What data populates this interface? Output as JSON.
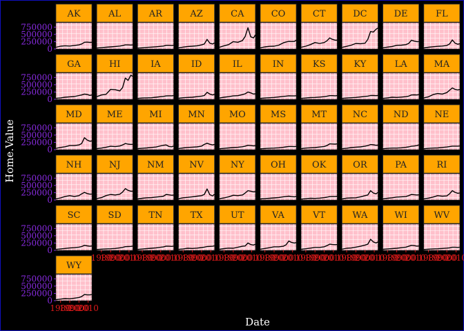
{
  "chart_data": {
    "type": "line",
    "layout": "faceted small multiples, 10 columns",
    "xlabel": "Date",
    "ylabel": "Home.Value",
    "x_range": [
      1975,
      2014
    ],
    "ylim": [
      0,
      900000
    ],
    "y_ticks": [
      0,
      250000,
      500000,
      750000
    ],
    "y_tick_labels": [
      "0",
      "250000",
      "500000",
      "750000"
    ],
    "x_ticks": [
      1980,
      1990,
      2000,
      2010
    ],
    "x_tick_labels": [
      "1980",
      "1990",
      "2000",
      "2010"
    ],
    "grid": true,
    "panel_background": "#ffc0cb",
    "strip_background": "#ffa500",
    "line_color": "#000000",
    "x": [
      1975,
      1980,
      1985,
      1990,
      1995,
      2000,
      2003,
      2006,
      2009,
      2012,
      2014
    ],
    "series": [
      {
        "name": "AK",
        "values": [
          60000,
          95000,
          110000,
          100000,
          120000,
          140000,
          170000,
          230000,
          235000,
          225000,
          230000
        ]
      },
      {
        "name": "AL",
        "values": [
          30000,
          45000,
          60000,
          70000,
          85000,
          100000,
          115000,
          140000,
          140000,
          135000,
          140000
        ]
      },
      {
        "name": "AR",
        "values": [
          28000,
          40000,
          55000,
          65000,
          75000,
          90000,
          100000,
          125000,
          125000,
          120000,
          125000
        ]
      },
      {
        "name": "AZ",
        "values": [
          40000,
          65000,
          85000,
          95000,
          110000,
          140000,
          170000,
          330000,
          200000,
          170000,
          210000
        ]
      },
      {
        "name": "CA",
        "values": [
          60000,
          110000,
          150000,
          250000,
          230000,
          290000,
          430000,
          730000,
          420000,
          380000,
          480000
        ]
      },
      {
        "name": "CO",
        "values": [
          40000,
          70000,
          90000,
          95000,
          130000,
          210000,
          240000,
          260000,
          255000,
          260000,
          300000
        ]
      },
      {
        "name": "CT",
        "values": [
          60000,
          95000,
          150000,
          220000,
          190000,
          220000,
          280000,
          380000,
          330000,
          300000,
          300000
        ]
      },
      {
        "name": "DC",
        "values": [
          55000,
          90000,
          130000,
          190000,
          180000,
          200000,
          330000,
          600000,
          580000,
          680000,
          720000
        ]
      },
      {
        "name": "DE",
        "values": [
          40000,
          65000,
          85000,
          125000,
          130000,
          150000,
          190000,
          300000,
          270000,
          250000,
          250000
        ]
      },
      {
        "name": "FL",
        "values": [
          35000,
          60000,
          75000,
          90000,
          100000,
          120000,
          170000,
          310000,
          200000,
          160000,
          180000
        ]
      },
      {
        "name": "GA",
        "values": [
          32000,
          50000,
          70000,
          85000,
          95000,
          130000,
          150000,
          180000,
          165000,
          135000,
          150000
        ]
      },
      {
        "name": "HI",
        "values": [
          90000,
          150000,
          170000,
          340000,
          330000,
          290000,
          400000,
          730000,
          650000,
          830000,
          790000
        ]
      },
      {
        "name": "IA",
        "values": [
          30000,
          45000,
          50000,
          55000,
          70000,
          90000,
          100000,
          115000,
          120000,
          120000,
          125000
        ]
      },
      {
        "name": "ID",
        "values": [
          35000,
          55000,
          65000,
          70000,
          90000,
          110000,
          130000,
          240000,
          180000,
          150000,
          170000
        ]
      },
      {
        "name": "IL",
        "values": [
          45000,
          70000,
          90000,
          115000,
          125000,
          160000,
          190000,
          250000,
          220000,
          180000,
          190000
        ]
      },
      {
        "name": "IN",
        "values": [
          30000,
          45000,
          55000,
          65000,
          80000,
          100000,
          110000,
          120000,
          115000,
          115000,
          120000
        ]
      },
      {
        "name": "KS",
        "values": [
          30000,
          45000,
          60000,
          65000,
          75000,
          90000,
          105000,
          125000,
          125000,
          120000,
          125000
        ]
      },
      {
        "name": "KY",
        "values": [
          30000,
          45000,
          55000,
          65000,
          80000,
          100000,
          110000,
          130000,
          130000,
          125000,
          130000
        ]
      },
      {
        "name": "LA",
        "values": [
          30000,
          50000,
          70000,
          65000,
          75000,
          90000,
          110000,
          150000,
          155000,
          150000,
          160000
        ]
      },
      {
        "name": "MA",
        "values": [
          50000,
          85000,
          160000,
          200000,
          180000,
          230000,
          310000,
          390000,
          340000,
          320000,
          340000
        ]
      },
      {
        "name": "MD",
        "values": [
          45000,
          75000,
          100000,
          140000,
          140000,
          160000,
          210000,
          410000,
          330000,
          290000,
          300000
        ]
      },
      {
        "name": "ME",
        "values": [
          35000,
          55000,
          80000,
          115000,
          105000,
          125000,
          160000,
          210000,
          190000,
          180000,
          185000
        ]
      },
      {
        "name": "MI",
        "values": [
          35000,
          50000,
          60000,
          75000,
          90000,
          130000,
          150000,
          160000,
          110000,
          100000,
          120000
        ]
      },
      {
        "name": "MN",
        "values": [
          40000,
          60000,
          75000,
          85000,
          95000,
          120000,
          180000,
          220000,
          185000,
          160000,
          180000
        ]
      },
      {
        "name": "MO",
        "values": [
          30000,
          45000,
          60000,
          70000,
          80000,
          100000,
          120000,
          150000,
          140000,
          130000,
          135000
        ]
      },
      {
        "name": "MS",
        "values": [
          28000,
          40000,
          50000,
          55000,
          65000,
          80000,
          95000,
          110000,
          110000,
          105000,
          110000
        ]
      },
      {
        "name": "MT",
        "values": [
          35000,
          55000,
          65000,
          70000,
          90000,
          110000,
          140000,
          200000,
          195000,
          190000,
          200000
        ]
      },
      {
        "name": "NC",
        "values": [
          32000,
          50000,
          70000,
          85000,
          95000,
          120000,
          140000,
          175000,
          165000,
          150000,
          155000
        ]
      },
      {
        "name": "ND",
        "values": [
          30000,
          45000,
          55000,
          55000,
          65000,
          80000,
          95000,
          115000,
          125000,
          140000,
          160000
        ]
      },
      {
        "name": "NE",
        "values": [
          30000,
          45000,
          55000,
          60000,
          75000,
          90000,
          105000,
          120000,
          120000,
          120000,
          125000
        ]
      },
      {
        "name": "NH",
        "values": [
          40000,
          70000,
          120000,
          150000,
          120000,
          150000,
          210000,
          260000,
          220000,
          200000,
          205000
        ]
      },
      {
        "name": "NJ",
        "values": [
          50000,
          80000,
          150000,
          190000,
          170000,
          200000,
          270000,
          390000,
          330000,
          300000,
          300000
        ]
      },
      {
        "name": "NM",
        "values": [
          35000,
          60000,
          75000,
          80000,
          100000,
          115000,
          130000,
          190000,
          175000,
          160000,
          165000
        ]
      },
      {
        "name": "NV",
        "values": [
          45000,
          75000,
          90000,
          110000,
          130000,
          150000,
          190000,
          380000,
          180000,
          140000,
          200000
        ]
      },
      {
        "name": "NY",
        "values": [
          45000,
          70000,
          110000,
          160000,
          150000,
          170000,
          240000,
          320000,
          300000,
          280000,
          290000
        ]
      },
      {
        "name": "OH",
        "values": [
          35000,
          50000,
          60000,
          70000,
          85000,
          110000,
          120000,
          130000,
          115000,
          110000,
          115000
        ]
      },
      {
        "name": "OK",
        "values": [
          28000,
          45000,
          60000,
          55000,
          65000,
          80000,
          95000,
          115000,
          120000,
          120000,
          125000
        ]
      },
      {
        "name": "OR",
        "values": [
          35000,
          65000,
          70000,
          75000,
          110000,
          150000,
          170000,
          320000,
          240000,
          210000,
          260000
        ]
      },
      {
        "name": "PA",
        "values": [
          40000,
          60000,
          75000,
          100000,
          110000,
          120000,
          150000,
          190000,
          180000,
          170000,
          175000
        ]
      },
      {
        "name": "RI",
        "values": [
          40000,
          65000,
          100000,
          150000,
          130000,
          140000,
          210000,
          320000,
          260000,
          230000,
          240000
        ]
      },
      {
        "name": "SC",
        "values": [
          30000,
          50000,
          65000,
          80000,
          90000,
          110000,
          130000,
          170000,
          155000,
          140000,
          150000
        ]
      },
      {
        "name": "SD",
        "values": [
          28000,
          40000,
          50000,
          55000,
          65000,
          85000,
          100000,
          125000,
          130000,
          135000,
          145000
        ]
      },
      {
        "name": "TN",
        "values": [
          30000,
          45000,
          60000,
          70000,
          85000,
          105000,
          115000,
          145000,
          140000,
          135000,
          145000
        ]
      },
      {
        "name": "TX",
        "values": [
          32000,
          50000,
          70000,
          65000,
          75000,
          95000,
          110000,
          130000,
          135000,
          140000,
          155000
        ]
      },
      {
        "name": "UT",
        "values": [
          35000,
          60000,
          75000,
          70000,
          105000,
          140000,
          150000,
          250000,
          200000,
          180000,
          210000
        ]
      },
      {
        "name": "VA",
        "values": [
          40000,
          65000,
          90000,
          120000,
          120000,
          140000,
          190000,
          320000,
          270000,
          250000,
          260000
        ]
      },
      {
        "name": "VT",
        "values": [
          35000,
          55000,
          75000,
          100000,
          100000,
          120000,
          160000,
          210000,
          200000,
          195000,
          200000
        ]
      },
      {
        "name": "WA",
        "values": [
          40000,
          70000,
          80000,
          110000,
          140000,
          180000,
          210000,
          380000,
          290000,
          250000,
          290000
        ]
      },
      {
        "name": "WI",
        "values": [
          35000,
          50000,
          60000,
          70000,
          90000,
          110000,
          140000,
          170000,
          160000,
          145000,
          150000
        ]
      },
      {
        "name": "WV",
        "values": [
          28000,
          40000,
          50000,
          55000,
          65000,
          75000,
          85000,
          105000,
          105000,
          100000,
          105000
        ]
      },
      {
        "name": "WY",
        "values": [
          35000,
          55000,
          70000,
          65000,
          85000,
          110000,
          140000,
          210000,
          200000,
          200000,
          210000
        ]
      }
    ]
  }
}
